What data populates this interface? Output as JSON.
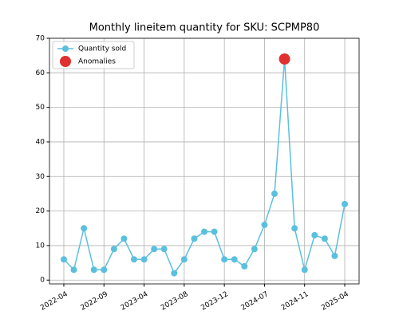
{
  "chart_data": {
    "type": "line",
    "title": "Monthly lineitem quantity for SKU: SCPMP80",
    "categories": [
      "2022-04",
      null,
      null,
      null,
      "2022-09",
      null,
      null,
      null,
      "2023-04",
      null,
      null,
      null,
      "2023-08",
      null,
      null,
      null,
      "2023-12",
      null,
      null,
      null,
      "2024-07",
      null,
      null,
      null,
      "2024-11",
      null,
      null,
      null,
      "2025-04"
    ],
    "series": [
      {
        "name": "Quantity sold",
        "color": "#5bc0de",
        "values": [
          6,
          3,
          15,
          3,
          3,
          9,
          12,
          6,
          6,
          9,
          9,
          2,
          6,
          12,
          14,
          14,
          6,
          6,
          4,
          9,
          16,
          25,
          64,
          15,
          3,
          13,
          12,
          7,
          22
        ]
      },
      {
        "name": "Anomalies",
        "color": "#e03030",
        "values": [
          null,
          null,
          null,
          null,
          null,
          null,
          null,
          null,
          null,
          null,
          null,
          null,
          null,
          null,
          null,
          null,
          null,
          null,
          null,
          null,
          null,
          null,
          64,
          null,
          null,
          null,
          null,
          null,
          null
        ]
      }
    ],
    "ylim": [
      -1.1,
      70
    ],
    "yticks": [
      0,
      10,
      20,
      30,
      40,
      50,
      60,
      70
    ],
    "grid": true,
    "legend": "upper left"
  }
}
